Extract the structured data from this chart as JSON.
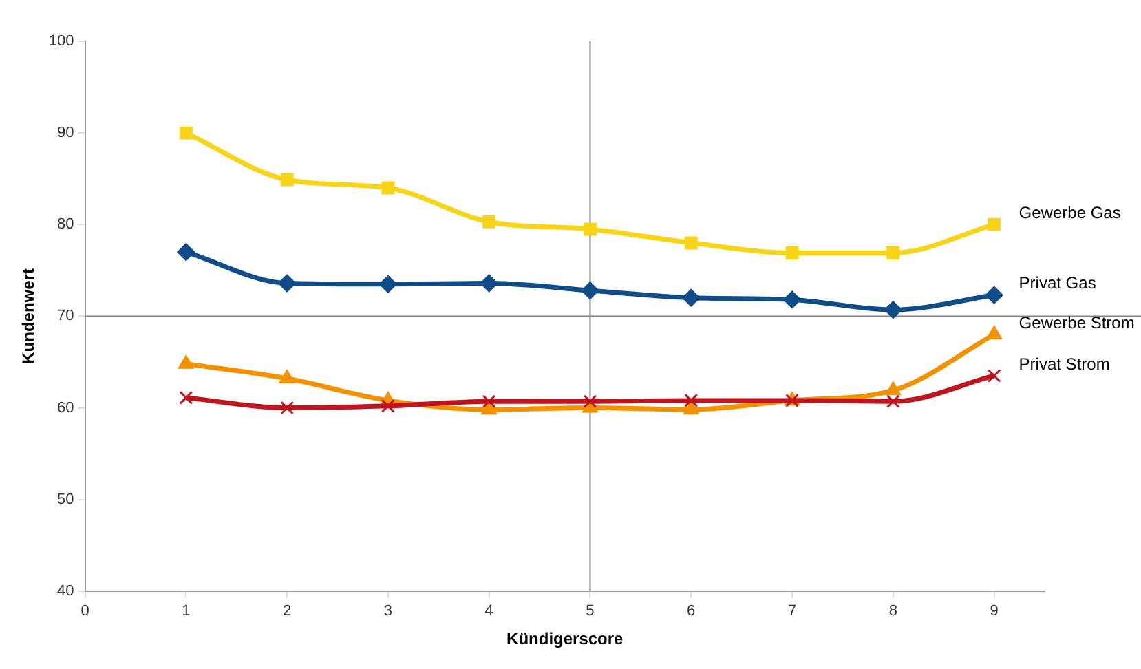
{
  "chart_data": {
    "type": "line",
    "xlabel": "Kündigerscore",
    "ylabel": "Kundenwert",
    "x": [
      1,
      2,
      3,
      4,
      5,
      6,
      7,
      8,
      9
    ],
    "xlim": [
      0,
      9.5
    ],
    "xticks": [
      0,
      1,
      2,
      3,
      4,
      5,
      6,
      7,
      8,
      9
    ],
    "ylim": [
      40,
      100
    ],
    "yticks": [
      40,
      50,
      60,
      70,
      80,
      90,
      100
    ],
    "grid": false,
    "legend": false,
    "line_style": "solid",
    "ref_lines": [
      {
        "axis": "x",
        "value": 5,
        "color": "#808080"
      },
      {
        "axis": "y",
        "value": 70,
        "color": "#808080"
      }
    ],
    "series": [
      {
        "name": "Gewerbe Gas",
        "color": "#f7d417",
        "marker": "square",
        "values": [
          90,
          84.9,
          84,
          80.3,
          79.5,
          78,
          76.9,
          76.9,
          80
        ]
      },
      {
        "name": "Privat Gas",
        "color": "#0f4c88",
        "marker": "diamond",
        "values": [
          77,
          73.6,
          73.5,
          73.6,
          72.8,
          72,
          71.8,
          70.7,
          72.3
        ]
      },
      {
        "name": "Gewerbe Strom",
        "color": "#f39200",
        "marker": "triangle",
        "values": [
          64.8,
          63.2,
          60.8,
          59.8,
          60,
          59.8,
          60.8,
          61.9,
          68
        ]
      },
      {
        "name": "Privat Strom",
        "color": "#c0141e",
        "marker": "cross",
        "values": [
          61.1,
          60,
          60.2,
          60.7,
          60.7,
          60.8,
          60.8,
          60.7,
          63.5
        ]
      }
    ]
  }
}
